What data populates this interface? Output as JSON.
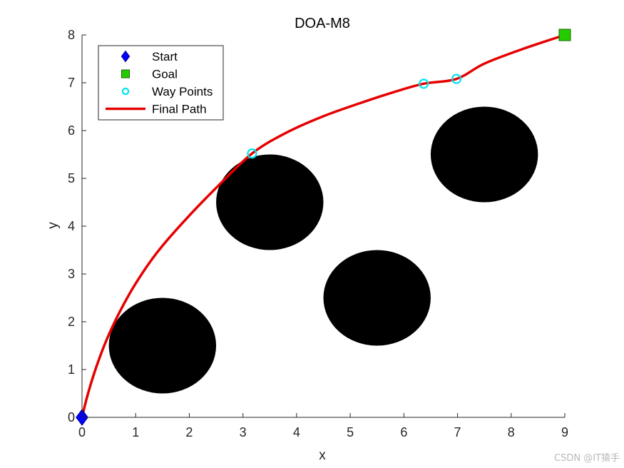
{
  "chart_data": {
    "type": "scatter",
    "title": "DOA-M8",
    "xlabel": "x",
    "ylabel": "y",
    "xlim": [
      0,
      9
    ],
    "ylim": [
      0,
      8
    ],
    "xticks": [
      0,
      1,
      2,
      3,
      4,
      5,
      6,
      7,
      8,
      9
    ],
    "yticks": [
      0,
      1,
      2,
      3,
      4,
      5,
      6,
      7,
      8
    ],
    "grid": false,
    "legend_position": "top-left",
    "obstacles": [
      {
        "cx": 1.5,
        "cy": 1.5,
        "r": 1.0
      },
      {
        "cx": 3.5,
        "cy": 4.5,
        "r": 1.0
      },
      {
        "cx": 5.5,
        "cy": 2.5,
        "r": 1.0
      },
      {
        "cx": 7.5,
        "cy": 5.5,
        "r": 1.0
      }
    ],
    "series": [
      {
        "name": "Start",
        "marker": "diamond",
        "color": "#0000ff",
        "points": [
          [
            0,
            0
          ]
        ]
      },
      {
        "name": "Goal",
        "marker": "square",
        "color": "#22cc00",
        "points": [
          [
            9,
            8
          ]
        ]
      },
      {
        "name": "Way Points",
        "marker": "circle",
        "color": "#00e5ee",
        "points": [
          [
            3.17,
            5.52
          ],
          [
            6.37,
            6.98
          ],
          [
            6.98,
            7.08
          ]
        ]
      },
      {
        "name": "Final Path",
        "marker": "line",
        "color": "#e60000",
        "points": [
          [
            0,
            0
          ],
          [
            0.1,
            0.45
          ],
          [
            0.25,
            1.0
          ],
          [
            0.45,
            1.6
          ],
          [
            0.7,
            2.2
          ],
          [
            1.0,
            2.8
          ],
          [
            1.4,
            3.45
          ],
          [
            1.9,
            4.1
          ],
          [
            2.5,
            4.8
          ],
          [
            3.17,
            5.52
          ],
          [
            3.8,
            5.95
          ],
          [
            4.5,
            6.3
          ],
          [
            5.2,
            6.58
          ],
          [
            5.8,
            6.8
          ],
          [
            6.37,
            6.98
          ],
          [
            6.98,
            7.08
          ],
          [
            7.5,
            7.4
          ],
          [
            8.2,
            7.7
          ],
          [
            9,
            8
          ]
        ]
      }
    ]
  },
  "watermark": "CSDN @IT猿手",
  "colors": {
    "axis": "#262626",
    "obstacle": "#000000",
    "legend_border": "#262626"
  }
}
